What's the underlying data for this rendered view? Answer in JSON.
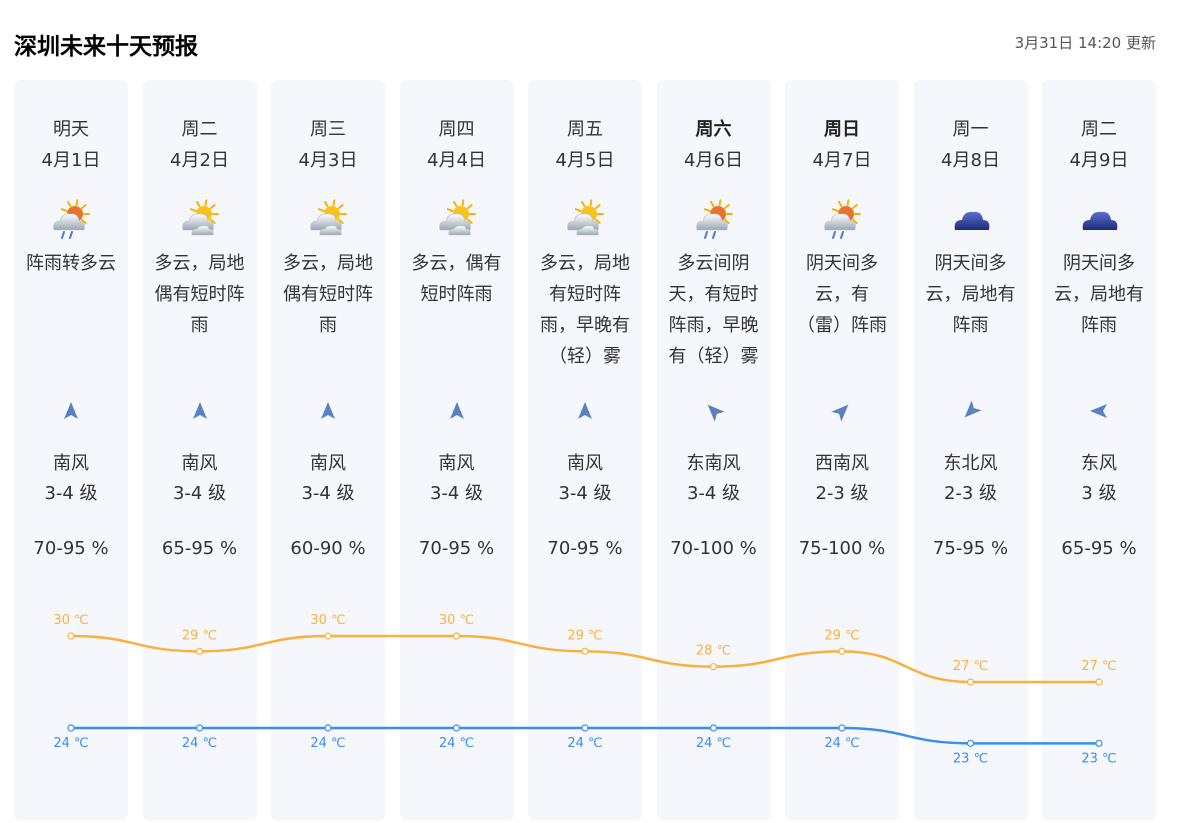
{
  "header": {
    "title": "深圳未来十天预报",
    "updated": "3月31日 14:20 更新"
  },
  "colors": {
    "high": "#f8b13d",
    "low": "#3a8eed",
    "column_bg": "#f5f7fc",
    "arrow": "#5a82c0"
  },
  "days": [
    {
      "day": "明天",
      "date": "4月1日",
      "icon": "rain-cloud-sun-icon",
      "desc": [
        "阵雨转多云"
      ],
      "wind_dir_icon": "north-arrow-icon",
      "wind_rotation_deg": 0,
      "wind_dir": "南风",
      "wind_level": "3-4 级",
      "humidity": "70-95 %",
      "weekend": false,
      "high": "30 ℃",
      "low": "24 ℃"
    },
    {
      "day": "周二",
      "date": "4月2日",
      "icon": "sun-cloud-icon",
      "desc": [
        "多云，局地",
        "偶有短时阵",
        "雨"
      ],
      "wind_dir_icon": "north-arrow-icon",
      "wind_rotation_deg": 0,
      "wind_dir": "南风",
      "wind_level": "3-4 级",
      "humidity": "65-95 %",
      "weekend": false,
      "high": "29 ℃",
      "low": "24 ℃"
    },
    {
      "day": "周三",
      "date": "4月3日",
      "icon": "sun-cloud-icon",
      "desc": [
        "多云，局地",
        "偶有短时阵",
        "雨"
      ],
      "wind_dir_icon": "north-arrow-icon",
      "wind_rotation_deg": 0,
      "wind_dir": "南风",
      "wind_level": "3-4 级",
      "humidity": "60-90 %",
      "weekend": false,
      "high": "30 ℃",
      "low": "24 ℃"
    },
    {
      "day": "周四",
      "date": "4月4日",
      "icon": "sun-cloud-icon",
      "desc": [
        "多云，偶有",
        "短时阵雨"
      ],
      "wind_dir_icon": "north-arrow-icon",
      "wind_rotation_deg": 0,
      "wind_dir": "南风",
      "wind_level": "3-4 级",
      "humidity": "70-95 %",
      "weekend": false,
      "high": "30 ℃",
      "low": "24 ℃"
    },
    {
      "day": "周五",
      "date": "4月5日",
      "icon": "sun-cloud-icon",
      "desc": [
        "多云，局地",
        "有短时阵",
        "雨，早晚有",
        "（轻）雾"
      ],
      "wind_dir_icon": "north-arrow-icon",
      "wind_rotation_deg": 0,
      "wind_dir": "南风",
      "wind_level": "3-4 级",
      "humidity": "70-95 %",
      "weekend": false,
      "high": "29 ℃",
      "low": "24 ℃"
    },
    {
      "day": "周六",
      "date": "4月6日",
      "icon": "rain-cloud-sun-icon",
      "desc": [
        "多云间阴",
        "天，有短时",
        "阵雨，早晚",
        "有（轻）雾"
      ],
      "wind_dir_icon": "northwest-arrow-icon",
      "wind_rotation_deg": -45,
      "wind_dir": "东南风",
      "wind_level": "3-4 级",
      "humidity": "70-100 %",
      "weekend": true,
      "high": "28 ℃",
      "low": "24 ℃"
    },
    {
      "day": "周日",
      "date": "4月7日",
      "icon": "rain-cloud-sun-icon",
      "desc": [
        "阴天间多",
        "云，有",
        "（雷）阵雨"
      ],
      "wind_dir_icon": "northeast-arrow-icon",
      "wind_rotation_deg": 45,
      "wind_dir": "西南风",
      "wind_level": "2-3 级",
      "humidity": "75-100 %",
      "weekend": true,
      "high": "29 ℃",
      "low": "24 ℃"
    },
    {
      "day": "周一",
      "date": "4月8日",
      "icon": "dark-cloud-icon",
      "desc": [
        "阴天间多",
        "云，局地有",
        "阵雨"
      ],
      "wind_dir_icon": "southwest-arrow-icon",
      "wind_rotation_deg": -135,
      "wind_dir": "东北风",
      "wind_level": "2-3 级",
      "humidity": "75-95 %",
      "weekend": false,
      "high": "27 ℃",
      "low": "23 ℃"
    },
    {
      "day": "周二",
      "date": "4月9日",
      "icon": "dark-cloud-icon",
      "desc": [
        "阴天间多",
        "云，局地有",
        "阵雨"
      ],
      "wind_dir_icon": "west-arrow-icon",
      "wind_rotation_deg": -90,
      "wind_dir": "东风",
      "wind_level": "3 级",
      "humidity": "65-95 %",
      "weekend": false,
      "high": "27 ℃",
      "low": "23 ℃"
    }
  ],
  "chart_data": {
    "type": "line",
    "x": [
      "4月1日",
      "4月2日",
      "4月3日",
      "4月4日",
      "4月5日",
      "4月6日",
      "4月7日",
      "4月8日",
      "4月9日"
    ],
    "unit": "℃",
    "series": [
      {
        "values": [
          30,
          29,
          30,
          30,
          29,
          28,
          29,
          27,
          27
        ]
      },
      {
        "values": [
          24,
          24,
          24,
          24,
          24,
          24,
          24,
          23,
          23
        ]
      }
    ],
    "ylim": [
      22,
      31
    ]
  }
}
